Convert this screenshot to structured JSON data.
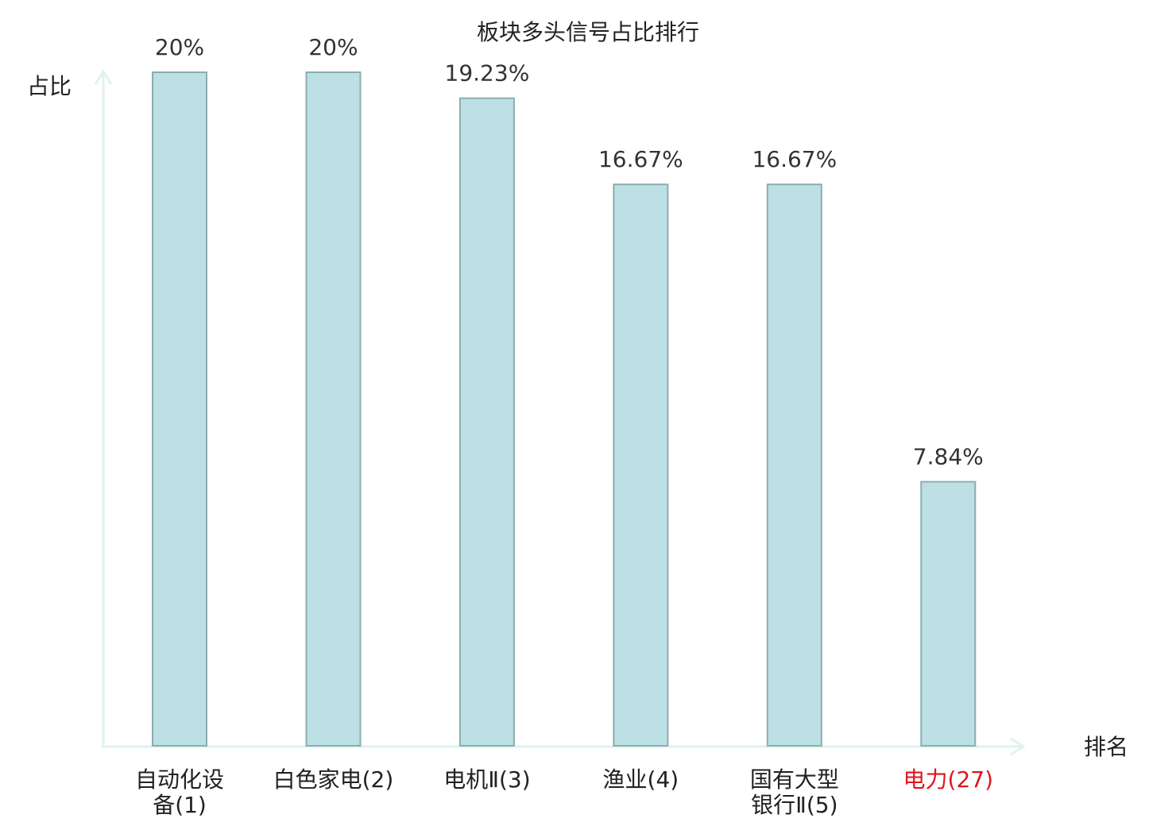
{
  "chart_data": {
    "type": "bar",
    "title": "板块多头信号占比排行",
    "y_label": "占比",
    "x_label": "排名",
    "categories": [
      "自动化设备(1)",
      "白色家电(2)",
      "电机Ⅱ(3)",
      "渔业(4)",
      "国有大型银行Ⅱ(5)",
      "电力(27)"
    ],
    "values": [
      20,
      20,
      19.23,
      16.67,
      16.67,
      7.84
    ],
    "value_labels": [
      "20%",
      "20%",
      "19.23%",
      "16.67%",
      "16.67%",
      "7.84%"
    ],
    "color": "#bce0e3",
    "label_colors": [
      "#222222",
      "#222222",
      "#222222",
      "#222222",
      "#222222",
      "#e0141e"
    ],
    "ylim": [
      0,
      20
    ]
  }
}
